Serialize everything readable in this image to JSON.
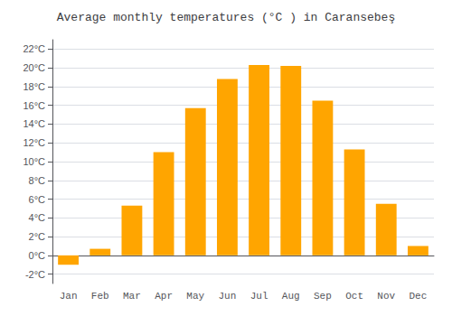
{
  "chart_data": {
    "type": "bar",
    "title": "Average monthly temperatures (°C ) in Caransebeş",
    "categories": [
      "Jan",
      "Feb",
      "Mar",
      "Apr",
      "May",
      "Jun",
      "Jul",
      "Aug",
      "Sep",
      "Oct",
      "Nov",
      "Dec"
    ],
    "values": [
      -1.0,
      0.7,
      5.3,
      11.0,
      15.7,
      18.8,
      20.3,
      20.2,
      16.5,
      11.3,
      5.5,
      1.0
    ],
    "color": "#FFA500",
    "ylim": [
      -3,
      23
    ],
    "yticks": [
      {
        "value": -2,
        "label": "-2°C"
      },
      {
        "value": 0,
        "label": "0°C"
      },
      {
        "value": 2,
        "label": "2°C"
      },
      {
        "value": 4,
        "label": "4°C"
      },
      {
        "value": 6,
        "label": "6°C"
      },
      {
        "value": 8,
        "label": "8°C"
      },
      {
        "value": 10,
        "label": "10°C"
      },
      {
        "value": 12,
        "label": "12°C"
      },
      {
        "value": 14,
        "label": "14°C"
      },
      {
        "value": 16,
        "label": "16°C"
      },
      {
        "value": 18,
        "label": "18°C"
      },
      {
        "value": 20,
        "label": "20°C"
      },
      {
        "value": 22,
        "label": "22°C"
      }
    ],
    "grid": true
  }
}
